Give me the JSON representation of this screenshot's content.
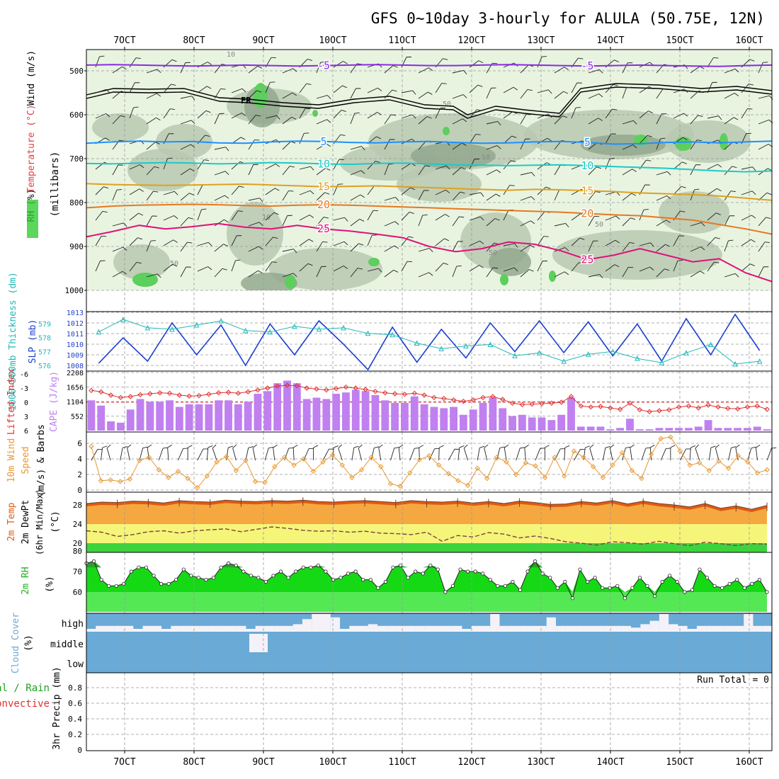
{
  "title": "GFS 0~10day 3-hourly for ALULA (50.75E, 12N)",
  "colors": {
    "rh_light": "#e8f4e0",
    "rh_mid": "#b8c8b0",
    "rh_dark": "#8fa58c",
    "rh_bright": "#5ccf5c",
    "iso_m5": "#8a2be2",
    "iso_5": "#1e90ff",
    "iso_10": "#1ec8c8",
    "iso_15": "#e0a020",
    "iso_20": "#e87820",
    "iso_25": "#e0107a",
    "slp": "#1a3fd0",
    "thick": "#20b8b8",
    "lifted": "#e03030",
    "cape": "#c080f0",
    "wind10": "#e89830",
    "tmax": "#e05a10",
    "tmin": "#f5a840",
    "dew_fill": "#f5f57a",
    "dewline": "#804040",
    "rh2_dark": "#2aa02a",
    "rh2": "#16d916",
    "rh2_low": "#55e855",
    "cloud": "#6aaad6",
    "cloud_clear": "#f4f2f8"
  },
  "chart_data": [
    {
      "type": "area",
      "name": "upper",
      "ylabel_rh": "RH (%)",
      "ylabel_temp": "Temperature (°C)",
      "ylabel_wind": "Wind (m/s)",
      "ylabel_p": "(millibars)",
      "yticks": [
        "500",
        "600",
        "700",
        "800",
        "900",
        "1000"
      ],
      "ylim": [
        450,
        1000
      ],
      "x_top": [
        "7OCT",
        "8OCT",
        "9OCT",
        "10OCT",
        "11OCT",
        "12OCT",
        "13OCT",
        "14OCT",
        "15OCT",
        "16OCT"
      ],
      "freezing_label": "FR",
      "contour_labels": [
        "10",
        "50",
        "10",
        "10",
        "50",
        "50",
        "50"
      ],
      "isotherms": [
        {
          "id": "m5",
          "label": "-5",
          "levels": [
            487,
            486,
            487,
            488,
            489,
            488,
            487,
            488,
            489,
            488,
            487,
            486,
            487,
            488,
            488,
            487,
            486,
            487,
            488,
            489,
            488,
            487,
            488,
            489,
            490,
            488,
            487
          ],
          "lab": [
            "-5",
            "-5"
          ]
        },
        {
          "id": "5",
          "label": "5",
          "levels": [
            665,
            662,
            660,
            662,
            661,
            664,
            665,
            662,
            660,
            661,
            663,
            664,
            662,
            661,
            663,
            665,
            664,
            662,
            661,
            663,
            667,
            666,
            663,
            662,
            664,
            662,
            660
          ],
          "lab": [
            "5",
            "5"
          ]
        },
        {
          "id": "10",
          "label": "10",
          "levels": [
            711,
            712,
            710,
            709,
            710,
            712,
            711,
            709,
            710,
            712,
            713,
            711,
            710,
            712,
            714,
            715,
            716,
            715,
            714,
            716,
            718,
            720,
            722,
            725,
            728,
            730,
            728
          ],
          "lab": [
            "10",
            "10"
          ]
        },
        {
          "id": "15",
          "label": "15",
          "levels": [
            757,
            759,
            760,
            761,
            760,
            759,
            758,
            760,
            762,
            764,
            763,
            762,
            764,
            766,
            768,
            770,
            772,
            770,
            771,
            773,
            775,
            778,
            780,
            782,
            785,
            790,
            795
          ],
          "lab": [
            "15",
            "15"
          ]
        },
        {
          "id": "20",
          "label": "20",
          "levels": [
            812,
            808,
            806,
            805,
            804,
            805,
            807,
            808,
            806,
            805,
            806,
            808,
            810,
            812,
            814,
            816,
            818,
            820,
            822,
            825,
            828,
            830,
            835,
            840,
            850,
            860,
            872
          ],
          "lab": [
            "20",
            "20"
          ]
        },
        {
          "id": "25",
          "label": "25",
          "levels": [
            878,
            866,
            852,
            860,
            855,
            848,
            856,
            860,
            852,
            860,
            865,
            872,
            880,
            900,
            912,
            905,
            890,
            895,
            910,
            930,
            920,
            905,
            920,
            935,
            928,
            960,
            980
          ],
          "lab": [
            "25",
            "25"
          ]
        }
      ]
    },
    {
      "type": "line",
      "name": "slp_thickness",
      "ylabel_left": "1000~500mb Thickness (dm)",
      "ylabel_right": "SLP (mb)",
      "thick_ticks": [
        "576",
        "577",
        "578",
        "579"
      ],
      "slp_ticks": [
        "1008",
        "1009",
        "1010",
        "1011",
        "1012",
        "1013"
      ],
      "slp": [
        1008.2,
        1010.6,
        1008.4,
        1012.0,
        1009.0,
        1011.8,
        1008.0,
        1011.9,
        1009.0,
        1012.2,
        1010.0,
        1007.6,
        1011.6,
        1008.3,
        1011.4,
        1008.7,
        1012.0,
        1009.3,
        1012.2,
        1009.2,
        1012.1,
        1008.9,
        1011.9,
        1008.4,
        1012.4,
        1009.0,
        1012.8,
        1009.4
      ],
      "thick": [
        578.4,
        579.3,
        578.7,
        578.6,
        578.9,
        579.2,
        578.5,
        578.4,
        578.8,
        578.6,
        578.7,
        578.3,
        578.2,
        577.6,
        577.2,
        577.4,
        577.5,
        576.7,
        576.9,
        576.3,
        576.8,
        577.0,
        576.5,
        576.2,
        576.9,
        577.5,
        576.1,
        576.3
      ]
    },
    {
      "type": "bar",
      "name": "cape_lifted",
      "ylabel_left": "Lifted Index",
      "ylabel_right": "CAPE (J/kg)",
      "li_ticks": [
        "-6",
        "-3",
        "0",
        "3",
        "6"
      ],
      "cape_ticks": [
        "552",
        "1104",
        "1656",
        "2208"
      ],
      "cape": [
        1150,
        950,
        350,
        300,
        800,
        1200,
        1100,
        1100,
        1150,
        900,
        1000,
        1000,
        1000,
        1150,
        1150,
        1000,
        1100,
        1400,
        1500,
        1800,
        1900,
        1800,
        1200,
        1250,
        1200,
        1400,
        1450,
        1550,
        1500,
        1350,
        1150,
        1050,
        1050,
        1300,
        1000,
        900,
        850,
        900,
        600,
        800,
        1050,
        1250,
        850,
        550,
        600,
        500,
        500,
        400,
        600,
        1250,
        150,
        150,
        150,
        50,
        100,
        450,
        50,
        50,
        100,
        100,
        100,
        100,
        150,
        400,
        100,
        100,
        100,
        100,
        150,
        50
      ],
      "li": [
        -2.5,
        -2.2,
        -1.5,
        -1.0,
        -1.2,
        -1.6,
        -1.8,
        -2.0,
        -1.9,
        -1.5,
        -1.3,
        -1.4,
        -1.7,
        -2.0,
        -2.1,
        -1.9,
        -2.2,
        -2.6,
        -3.0,
        -3.4,
        -3.6,
        -3.5,
        -3.0,
        -2.8,
        -2.6,
        -2.9,
        -3.2,
        -3.0,
        -2.7,
        -2.3,
        -2.0,
        -1.8,
        -1.7,
        -1.9,
        -1.5,
        -1.0,
        -0.8,
        -0.5,
        -0.2,
        -0.5,
        -1.0,
        -1.2,
        -0.6,
        0.2,
        0.5,
        0.4,
        0.3,
        0.2,
        0.0,
        -1.2,
        0.8,
        1.0,
        0.9,
        1.2,
        1.5,
        0.2,
        1.6,
        2.0,
        1.8,
        1.6,
        1.0,
        0.8,
        1.2,
        0.6,
        1.0,
        1.3,
        1.4,
        1.0,
        0.8,
        1.5
      ]
    },
    {
      "type": "line",
      "name": "wind10m",
      "ylabel": "10m Wind Speed (m/s) & Barbs",
      "yticks": [
        "0",
        "2",
        "4",
        "6"
      ],
      "ylim": [
        0,
        7
      ],
      "speed": [
        5.6,
        1.2,
        1.3,
        1.1,
        1.4,
        3.8,
        4.2,
        2.6,
        1.6,
        2.4,
        1.5,
        0.3,
        1.8,
        3.6,
        4.3,
        2.5,
        3.8,
        1.1,
        1.0,
        3.0,
        4.2,
        3.2,
        4.0,
        2.4,
        3.6,
        4.5,
        3.2,
        1.6,
        2.6,
        4.2,
        3.0,
        0.8,
        0.5,
        2.2,
        3.9,
        4.4,
        3.2,
        2.1,
        1.2,
        0.6,
        2.8,
        1.5,
        4.2,
        3.6,
        2.0,
        3.5,
        3.1,
        1.6,
        4.2,
        1.8,
        5.0,
        4.2,
        3.0,
        1.6,
        3.2,
        4.8,
        2.5,
        1.5,
        4.6,
        6.6,
        6.8,
        5.0,
        3.2,
        3.5,
        2.5,
        3.7,
        2.8,
        4.4,
        3.6,
        2.2,
        2.6
      ]
    },
    {
      "type": "area",
      "name": "temp2m",
      "ylabel": "2m Temp 2m DewPt (6hr Min/Max) (°C)",
      "yticks": [
        "20",
        "24",
        "28"
      ],
      "ylim": [
        18.6,
        30
      ],
      "tmax": [
        28.3,
        28.6,
        28.5,
        28.8,
        28.7,
        28.4,
        28.9,
        28.7,
        28.6,
        29.0,
        28.8,
        28.7,
        28.9,
        28.8,
        29.0,
        28.7,
        28.6,
        28.8,
        28.9,
        28.7,
        28.5,
        28.9,
        28.7,
        28.6,
        28.8,
        28.4,
        28.7,
        28.3,
        28.8,
        28.5,
        28.1,
        28.2,
        28.7,
        28.4,
        28.9,
        28.2,
        28.8,
        28.3,
        28.0,
        27.6,
        28.3,
        27.3,
        27.8,
        27.1,
        27.9
      ],
      "dew": [
        22.6,
        22.3,
        21.4,
        21.8,
        22.4,
        22.6,
        22.1,
        22.6,
        22.8,
        23.0,
        22.4,
        22.9,
        23.4,
        23.1,
        22.7,
        22.5,
        22.6,
        22.3,
        22.5,
        22.1,
        22.0,
        21.8,
        22.3,
        20.4,
        21.6,
        21.3,
        22.2,
        21.9,
        21.1,
        21.5,
        21.0,
        20.3,
        20.0,
        19.6,
        20.3,
        20.1,
        19.8,
        20.4,
        19.9,
        19.5,
        20.2,
        19.9,
        19.5,
        19.9,
        19.8
      ]
    },
    {
      "type": "area",
      "name": "rh2m",
      "ylabel": "2m RH (%)",
      "yticks": [
        "60",
        "70",
        "80"
      ],
      "ylim": [
        52,
        81
      ],
      "rh": [
        74,
        75,
        66,
        63,
        63,
        64,
        70,
        72,
        72,
        68,
        64,
        64,
        66,
        71,
        68,
        67,
        66,
        67,
        72,
        74,
        73,
        70,
        68,
        67,
        65,
        68,
        70,
        67,
        70,
        72,
        72,
        73,
        70,
        66,
        67,
        69,
        70,
        66,
        66,
        62,
        65,
        72,
        73,
        67,
        70,
        69,
        73,
        71,
        60,
        63,
        71,
        70,
        70,
        69,
        66,
        63,
        63,
        65,
        61,
        70,
        75,
        69,
        67,
        62,
        65,
        57,
        71,
        65,
        67,
        62,
        62,
        63,
        57,
        62,
        67,
        63,
        58,
        65,
        68,
        65,
        60,
        61,
        71,
        67,
        63,
        62,
        64,
        66,
        62,
        64,
        66,
        60
      ]
    },
    {
      "type": "bar",
      "name": "cloud",
      "ylabel": "Cloud Cover (%)",
      "levels": [
        "high",
        "middle",
        "low"
      ],
      "high_clear": [
        0,
        30,
        30,
        30,
        30,
        0,
        30,
        30,
        0,
        30,
        30,
        30,
        30,
        30,
        30,
        30,
        30,
        0,
        30,
        30,
        30,
        30,
        40,
        70,
        100,
        100,
        80,
        10,
        30,
        30,
        40,
        30,
        30,
        30,
        30,
        30,
        30,
        30,
        30,
        30,
        10,
        30,
        30,
        100,
        30,
        30,
        30,
        30,
        30,
        80,
        30,
        30,
        30,
        30,
        30,
        30,
        30,
        30,
        20,
        40,
        60,
        100,
        40,
        30,
        10,
        30,
        30,
        30,
        30,
        30,
        100,
        30,
        30
      ],
      "middle_clear": [
        0,
        0,
        0,
        0,
        0,
        0,
        0,
        0,
        0,
        0,
        0,
        0,
        0,
        0,
        0,
        0,
        0,
        0,
        0,
        0,
        0,
        0,
        0,
        0,
        0,
        0,
        0,
        0,
        0,
        0,
        0,
        0,
        0,
        0,
        0,
        0,
        0,
        0,
        0,
        0,
        0,
        0,
        0,
        0,
        0,
        0,
        0,
        0,
        0,
        0,
        0,
        0,
        0,
        0,
        0,
        0,
        0,
        0,
        0,
        0,
        0,
        0,
        0,
        0,
        0,
        0,
        0,
        0,
        0,
        0,
        0,
        0,
        0
      ]
    },
    {
      "type": "bar",
      "name": "precip",
      "ylabel": "3hr Precip (mm)",
      "ylabel_total": "Total / Rain",
      "ylabel_conv": "Convective",
      "yticks": [
        "0",
        "0.2",
        "0.4",
        "0.6",
        "0.8"
      ],
      "ylim": [
        0,
        1
      ],
      "run_total": "Run Total = 0",
      "x_bottom": [
        "7OCT",
        "8OCT",
        "9OCT",
        "10OCT",
        "11OCT",
        "12OCT",
        "13OCT",
        "14OCT",
        "15OCT",
        "16OCT"
      ],
      "values": []
    }
  ]
}
